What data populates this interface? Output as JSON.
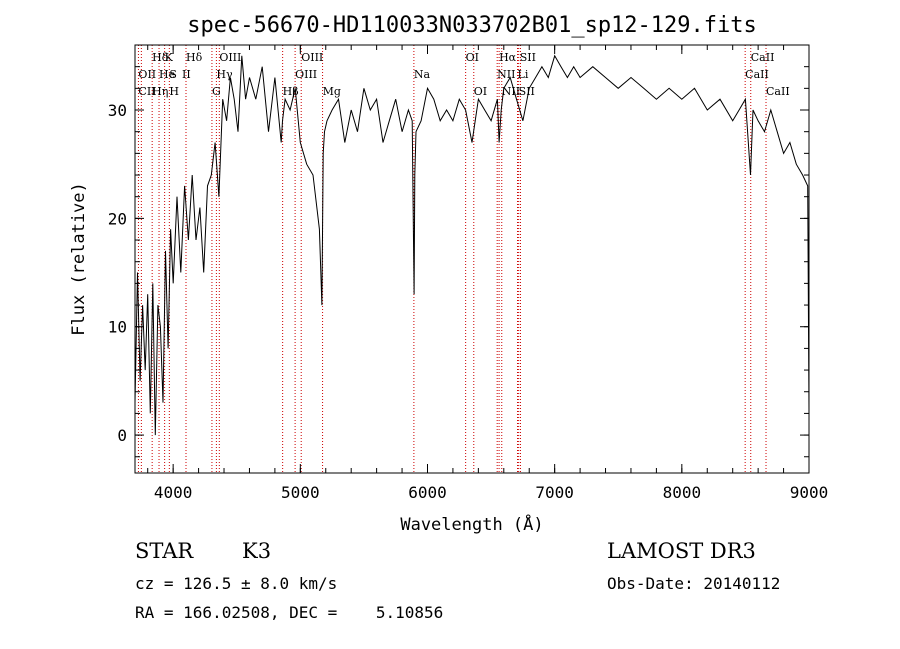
{
  "chart_data": {
    "type": "line",
    "title": "spec-56670-HD110033N033702B01_sp12-129.fits",
    "xlabel": "Wavelength (Å)",
    "ylabel": "Flux (relative)",
    "xlim": [
      3700,
      9000
    ],
    "ylim": [
      -3.5,
      36
    ],
    "xticks": [
      4000,
      5000,
      6000,
      7000,
      8000,
      9000
    ],
    "yticks": [
      0,
      10,
      20,
      30
    ],
    "series": [
      {
        "x": [
          3700,
          3720,
          3740,
          3760,
          3780,
          3800,
          3820,
          3840,
          3860,
          3880,
          3900,
          3920,
          3940,
          3960,
          3980,
          4000,
          4030,
          4060,
          4090,
          4120,
          4150,
          4180,
          4210,
          4240,
          4270,
          4300,
          4330,
          4360,
          4390,
          4420,
          4450,
          4480,
          4510,
          4540,
          4570,
          4600,
          4650,
          4700,
          4750,
          4800,
          4850,
          4860,
          4880,
          4920,
          4960,
          5000,
          5050,
          5100,
          5150,
          5170,
          5180,
          5190,
          5210,
          5250,
          5300,
          5350,
          5400,
          5450,
          5500,
          5550,
          5600,
          5650,
          5700,
          5750,
          5800,
          5850,
          5880,
          5890,
          5895,
          5900,
          5910,
          5950,
          6000,
          6050,
          6100,
          6150,
          6200,
          6250,
          6300,
          6350,
          6400,
          6450,
          6500,
          6550,
          6563,
          6580,
          6600,
          6650,
          6700,
          6750,
          6800,
          6850,
          6900,
          6950,
          7000,
          7050,
          7100,
          7150,
          7200,
          7300,
          7400,
          7500,
          7600,
          7700,
          7800,
          7900,
          8000,
          8100,
          8200,
          8300,
          8400,
          8450,
          8500,
          8540,
          8560,
          8600,
          8650,
          8700,
          8750,
          8800,
          8850,
          8900,
          8950,
          8990,
          9000
        ],
        "y": [
          3,
          15,
          5,
          12,
          6,
          13,
          2,
          14,
          0,
          12,
          10,
          3,
          17,
          8,
          19,
          14,
          22,
          15,
          23,
          18,
          24,
          18,
          21,
          15,
          23,
          24,
          27,
          22,
          31,
          29,
          33,
          31,
          28,
          35,
          31,
          33,
          31,
          34,
          28,
          33,
          27,
          29,
          31,
          30,
          32,
          27,
          25,
          24,
          19,
          12,
          26,
          28,
          29,
          30,
          31,
          27,
          30,
          28,
          32,
          30,
          31,
          27,
          29,
          31,
          28,
          30,
          29,
          18,
          13,
          24,
          28,
          29,
          32,
          31,
          29,
          30,
          29,
          31,
          30,
          27,
          31,
          30,
          29,
          31,
          27,
          30,
          32,
          33,
          31,
          29,
          32,
          33,
          34,
          33,
          35,
          34,
          33,
          34,
          33,
          34,
          33,
          32,
          33,
          32,
          31,
          32,
          31,
          32,
          30,
          31,
          29,
          30,
          31,
          24,
          30,
          29,
          28,
          30,
          28,
          26,
          27,
          25,
          24,
          23,
          2
        ]
      }
    ],
    "spectral_lines": [
      {
        "label": "Hδ",
        "wl": 3835,
        "row": 1
      },
      {
        "label": "K",
        "wl": 3933,
        "row": 1
      },
      {
        "label": "Hδ",
        "wl": 4101,
        "row": 1
      },
      {
        "label": "OII",
        "wl": 3727,
        "row": 2
      },
      {
        "label": "He",
        "wl": 3889,
        "row": 2
      },
      {
        "label": "S",
        "wl": 3970,
        "row": 2
      },
      {
        "label": "II",
        "wl": 4070,
        "row": 2
      },
      {
        "label": "CII",
        "wl": 3727,
        "row": 3
      },
      {
        "label": "Hη",
        "wl": 3835,
        "row": 3
      },
      {
        "label": "H",
        "wl": 3970,
        "row": 3
      },
      {
        "label": "OIII",
        "wl": 4363,
        "row": 1
      },
      {
        "label": "Hγ",
        "wl": 4340,
        "row": 2
      },
      {
        "label": "G",
        "wl": 4305,
        "row": 3
      },
      {
        "label": "OIII",
        "wl": 5007,
        "row": 1
      },
      {
        "label": "OIII",
        "wl": 4959,
        "row": 2
      },
      {
        "label": "Hβ",
        "wl": 4861,
        "row": 3
      },
      {
        "label": "Mg",
        "wl": 5175,
        "row": 3
      },
      {
        "label": "Na",
        "wl": 5893,
        "row": 2
      },
      {
        "label": "OI",
        "wl": 6300,
        "row": 1
      },
      {
        "label": "OI",
        "wl": 6364,
        "row": 3
      },
      {
        "label": "Hα",
        "wl": 6563,
        "row": 1
      },
      {
        "label": "SII",
        "wl": 6725,
        "row": 1
      },
      {
        "label": "NII",
        "wl": 6548,
        "row": 2
      },
      {
        "label": "Li",
        "wl": 6708,
        "row": 2
      },
      {
        "label": "NII",
        "wl": 6584,
        "row": 3
      },
      {
        "label": "SII",
        "wl": 6717,
        "row": 3
      },
      {
        "label": "CaII",
        "wl": 8542,
        "row": 1
      },
      {
        "label": "CaII",
        "wl": 8498,
        "row": 2
      },
      {
        "label": "CaII",
        "wl": 8662,
        "row": 3
      }
    ],
    "marker_lines": [
      3727,
      3750,
      3835,
      3889,
      3933,
      3970,
      4101,
      4305,
      4340,
      4363,
      4861,
      4959,
      5007,
      5175,
      5893,
      6300,
      6364,
      6548,
      6563,
      6584,
      6708,
      6717,
      6731,
      8498,
      8542,
      8662
    ]
  },
  "info": {
    "object_class": "STAR",
    "subclass": "K3",
    "redshift": "cz = 126.5 ± 8.0 km/s",
    "coords": "RA = 166.02508, DEC =    5.10856",
    "survey": "LAMOST DR3",
    "obs_date": "Obs-Date: 20140112"
  },
  "colors": {
    "line": "#000000",
    "markers": "#cc0000"
  }
}
